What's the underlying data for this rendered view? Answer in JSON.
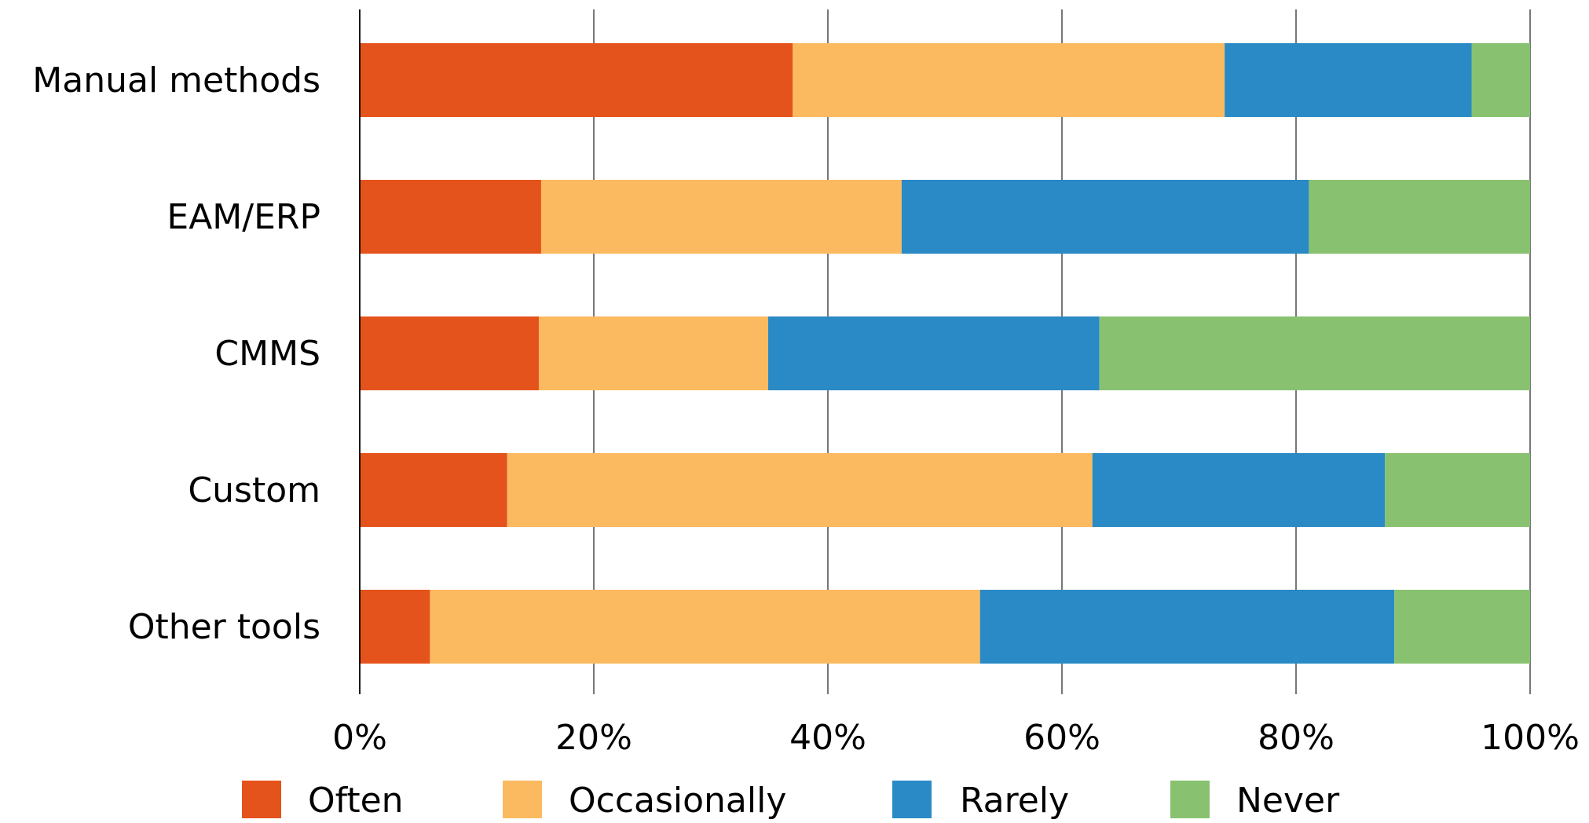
{
  "chart_data": {
    "type": "bar",
    "orientation": "horizontal",
    "stacked": true,
    "categories": [
      "Manual methods",
      "EAM/ERP",
      "CMMS",
      "Custom",
      "Other tools"
    ],
    "series": [
      {
        "name": "Often",
        "color": "#E5531C",
        "values": [
          37.0,
          15.5,
          15.3,
          12.6,
          6.0
        ]
      },
      {
        "name": "Occasionally",
        "color": "#FBBA5F",
        "values": [
          36.9,
          30.8,
          19.6,
          50.0,
          47.0
        ]
      },
      {
        "name": "Rarely",
        "color": "#2A8AC5",
        "values": [
          21.1,
          34.8,
          28.3,
          25.0,
          35.4
        ]
      },
      {
        "name": "Never",
        "color": "#88C270",
        "values": [
          5.0,
          18.9,
          36.8,
          12.4,
          11.6
        ]
      }
    ],
    "xlim": [
      0,
      100
    ],
    "x_ticks": [
      "0%",
      "20%",
      "40%",
      "60%",
      "80%",
      "100%"
    ],
    "grid": "vertical",
    "legend_position": "bottom"
  }
}
